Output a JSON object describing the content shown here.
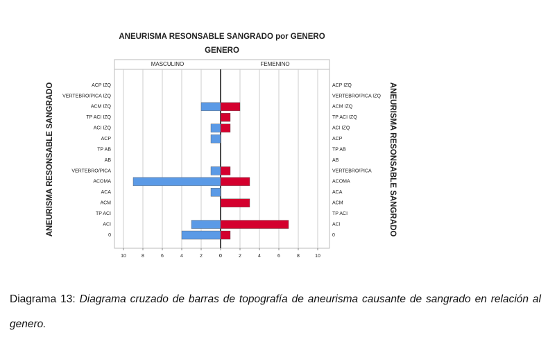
{
  "chart_data": {
    "type": "bar",
    "orientation": "horizontal",
    "mirrored": true,
    "title": "ANEURISMA RESONSABLE SANGRADO  por GENERO",
    "subtitle": "GENERO",
    "y_label": "ANEURISMA RESONSABLE SANGRADO",
    "categories": [
      "ACP IZQ",
      "VERTEBRO/PICA IZQ",
      "ACM IZQ",
      "TP ACI IZQ",
      "ACI IZQ",
      "ACP",
      "TP AB",
      "AB",
      "VERTEBRO/PICA",
      "ACOMA",
      "ACA",
      "ACM",
      "TP ACI",
      "ACI",
      "0"
    ],
    "series": [
      {
        "name": "MASCULINO",
        "color": "#5b9ae6",
        "values": [
          0,
          0,
          2,
          0,
          1,
          1,
          0,
          0,
          1,
          9,
          1,
          0,
          0,
          3,
          4
        ]
      },
      {
        "name": "FEMENINO",
        "color": "#d4002e",
        "values": [
          0,
          0,
          2,
          1,
          1,
          0,
          0,
          0,
          1,
          3,
          0,
          3,
          0,
          7,
          1
        ]
      }
    ],
    "xlim": [
      0,
      10
    ],
    "xticks": [
      0,
      2,
      4,
      6,
      8,
      10
    ],
    "grid": true
  },
  "caption": {
    "label": "Diagrama 13:",
    "text": "Diagrama cruzado de barras de topografía de aneurisma causante de sangrado en relación al genero."
  }
}
